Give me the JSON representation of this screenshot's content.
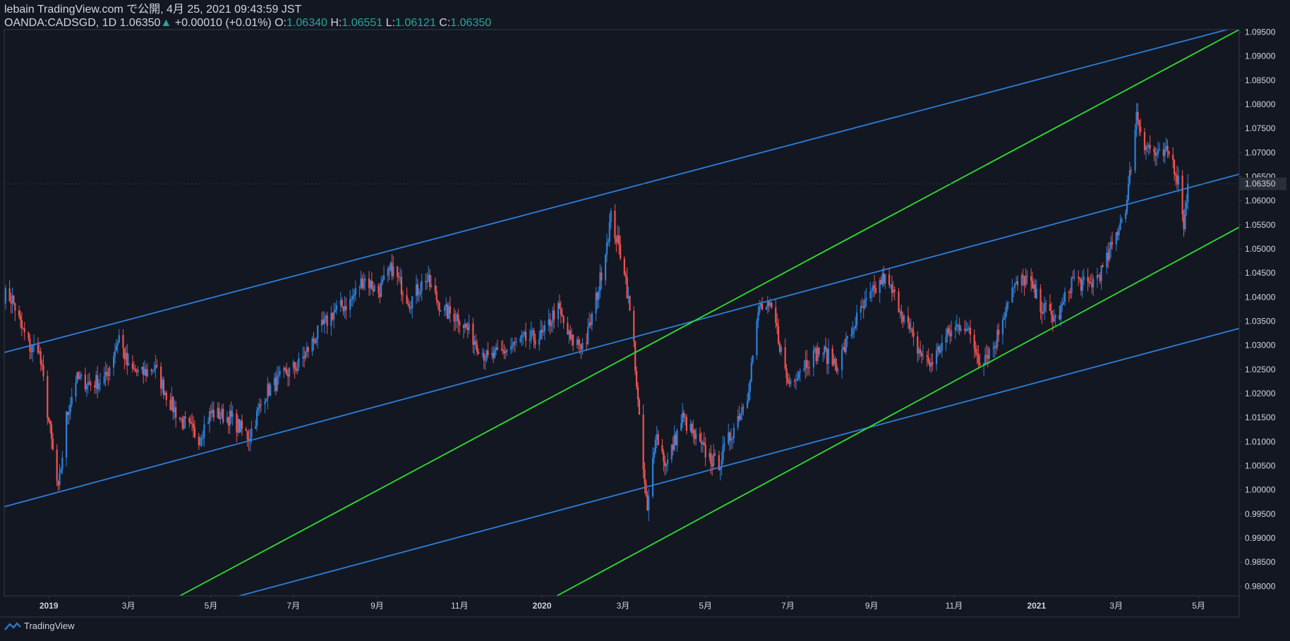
{
  "header": {
    "line1": "lebain TradingView.com で公開, 4月 25, 2021 09:43:59 JST",
    "symbol": "OANDA:CADSGD, 1D 1.06350",
    "change": "+0.00010 (+0.01%)",
    "o_label": "O:",
    "o_value": "1.06340",
    "h_label": "H:",
    "h_value": "1.06551",
    "l_label": "L:",
    "l_value": "1.06121",
    "c_label": "C:",
    "c_value": "1.06350"
  },
  "footer": {
    "brand": "TradingView"
  },
  "colors": {
    "background": "#131722",
    "up_candle": "#2e7fd6",
    "down_candle": "#ef5350",
    "blue_line": "#2c7fd9",
    "green_line": "#2ee02e",
    "text": "#d1d4dc",
    "grid_border": "#363a45"
  },
  "chart_data": {
    "type": "candlestick",
    "y_axis": {
      "min": 0.978,
      "max": 1.0955,
      "ticks": [
        "0.98000",
        "0.98500",
        "0.99000",
        "0.99500",
        "1.00000",
        "1.00500",
        "1.01000",
        "1.01500",
        "1.02000",
        "1.02500",
        "1.03000",
        "1.03500",
        "1.04000",
        "1.04500",
        "1.05000",
        "1.05500",
        "1.06000",
        "1.06500",
        "1.07000",
        "1.07500",
        "1.08000",
        "1.08500",
        "1.09000",
        "1.09500"
      ],
      "last_price": "1.06350"
    },
    "x_axis": {
      "start": "2018-11-29",
      "end": "2021-05-31",
      "ticks": [
        {
          "label": "2019",
          "date": "2019-01-01",
          "bold": true
        },
        {
          "label": "3月",
          "date": "2019-03-01"
        },
        {
          "label": "5月",
          "date": "2019-05-01"
        },
        {
          "label": "7月",
          "date": "2019-07-01"
        },
        {
          "label": "9月",
          "date": "2019-09-01"
        },
        {
          "label": "11月",
          "date": "2019-11-01"
        },
        {
          "label": "2020",
          "date": "2020-01-01",
          "bold": true
        },
        {
          "label": "3月",
          "date": "2020-03-01"
        },
        {
          "label": "5月",
          "date": "2020-05-01"
        },
        {
          "label": "7月",
          "date": "2020-07-01"
        },
        {
          "label": "9月",
          "date": "2020-09-01"
        },
        {
          "label": "11月",
          "date": "2020-11-01"
        },
        {
          "label": "2021",
          "date": "2021-01-01",
          "bold": true
        },
        {
          "label": "3月",
          "date": "2021-03-01"
        },
        {
          "label": "5月",
          "date": "2021-05-01"
        }
      ]
    },
    "price_path": [
      [
        "2018-11-29",
        1.0405
      ],
      [
        "2018-12-05",
        1.0395
      ],
      [
        "2018-12-12",
        1.0335
      ],
      [
        "2018-12-19",
        1.029
      ],
      [
        "2018-12-24",
        1.03
      ],
      [
        "2018-12-28",
        1.0225
      ],
      [
        "2019-01-03",
        1.01
      ],
      [
        "2019-01-08",
        0.9995
      ],
      [
        "2019-01-14",
        1.015
      ],
      [
        "2019-01-21",
        1.023
      ],
      [
        "2019-02-01",
        1.022
      ],
      [
        "2019-02-12",
        1.023
      ],
      [
        "2019-02-22",
        1.032
      ],
      [
        "2019-03-01",
        1.025
      ],
      [
        "2019-03-11",
        1.024
      ],
      [
        "2019-03-20",
        1.0255
      ],
      [
        "2019-04-01",
        1.018
      ],
      [
        "2019-04-10",
        1.014
      ],
      [
        "2019-04-22",
        1.011
      ],
      [
        "2019-05-01",
        1.016
      ],
      [
        "2019-05-15",
        1.015
      ],
      [
        "2019-05-29",
        1.011
      ],
      [
        "2019-06-10",
        1.02
      ],
      [
        "2019-06-25",
        1.024
      ],
      [
        "2019-07-05",
        1.026
      ],
      [
        "2019-07-18",
        1.032
      ],
      [
        "2019-07-31",
        1.037
      ],
      [
        "2019-08-12",
        1.039
      ],
      [
        "2019-08-22",
        1.044
      ],
      [
        "2019-09-02",
        1.041
      ],
      [
        "2019-09-12",
        1.046
      ],
      [
        "2019-09-25",
        1.039
      ],
      [
        "2019-10-07",
        1.044
      ],
      [
        "2019-10-20",
        1.037
      ],
      [
        "2019-10-31",
        1.036
      ],
      [
        "2019-11-10",
        1.032
      ],
      [
        "2019-11-22",
        1.027
      ],
      [
        "2019-12-05",
        1.029
      ],
      [
        "2019-12-18",
        1.031
      ],
      [
        "2020-01-02",
        1.032
      ],
      [
        "2020-01-12",
        1.038
      ],
      [
        "2020-01-22",
        1.031
      ],
      [
        "2020-02-02",
        1.03
      ],
      [
        "2020-02-12",
        1.042
      ],
      [
        "2020-02-21",
        1.0565
      ],
      [
        "2020-03-02",
        1.046
      ],
      [
        "2020-03-09",
        1.03
      ],
      [
        "2020-03-14",
        1.01
      ],
      [
        "2020-03-19",
        0.995
      ],
      [
        "2020-03-25",
        1.012
      ],
      [
        "2020-04-02",
        1.005
      ],
      [
        "2020-04-14",
        1.015
      ],
      [
        "2020-04-27",
        1.009
      ],
      [
        "2020-05-10",
        1.005
      ],
      [
        "2020-05-22",
        1.013
      ],
      [
        "2020-06-01",
        1.02
      ],
      [
        "2020-06-10",
        1.038
      ],
      [
        "2020-06-20",
        1.037
      ],
      [
        "2020-07-01",
        1.022
      ],
      [
        "2020-07-12",
        1.026
      ],
      [
        "2020-07-25",
        1.029
      ],
      [
        "2020-08-07",
        1.026
      ],
      [
        "2020-08-20",
        1.035
      ],
      [
        "2020-08-31",
        1.04
      ],
      [
        "2020-09-10",
        1.044
      ],
      [
        "2020-09-22",
        1.038
      ],
      [
        "2020-10-03",
        1.03
      ],
      [
        "2020-10-14",
        1.026
      ],
      [
        "2020-10-27",
        1.032
      ],
      [
        "2020-11-08",
        1.035
      ],
      [
        "2020-11-20",
        1.027
      ],
      [
        "2020-12-01",
        1.03
      ],
      [
        "2020-12-12",
        1.041
      ],
      [
        "2020-12-24",
        1.044
      ],
      [
        "2021-01-05",
        1.038
      ],
      [
        "2021-01-16",
        1.035
      ],
      [
        "2021-01-28",
        1.044
      ],
      [
        "2021-02-08",
        1.042
      ],
      [
        "2021-02-20",
        1.046
      ],
      [
        "2021-03-01",
        1.053
      ],
      [
        "2021-03-09",
        1.06
      ],
      [
        "2021-03-16",
        1.078
      ],
      [
        "2021-03-22",
        1.072
      ],
      [
        "2021-04-01",
        1.069
      ],
      [
        "2021-04-10",
        1.07
      ],
      [
        "2021-04-18",
        1.062
      ],
      [
        "2021-04-20",
        1.055
      ],
      [
        "2021-04-23",
        1.0635
      ]
    ],
    "trendlines": [
      {
        "color": "blue",
        "from": [
          "2018-11-29",
          1.0285
        ],
        "to": [
          "2021-05-22",
          1.0955
        ]
      },
      {
        "color": "blue",
        "from": [
          "2018-11-29",
          0.9965
        ],
        "to": [
          "2021-05-31",
          1.0655
        ]
      },
      {
        "color": "blue",
        "from": [
          "2019-05-22",
          0.978
        ],
        "to": [
          "2021-05-31",
          1.0335
        ]
      },
      {
        "color": "green",
        "from": [
          "2019-04-08",
          0.978
        ],
        "to": [
          "2021-05-31",
          1.0955
        ]
      },
      {
        "color": "green",
        "from": [
          "2020-01-12",
          0.978
        ],
        "to": [
          "2021-05-31",
          1.0545
        ]
      }
    ]
  }
}
